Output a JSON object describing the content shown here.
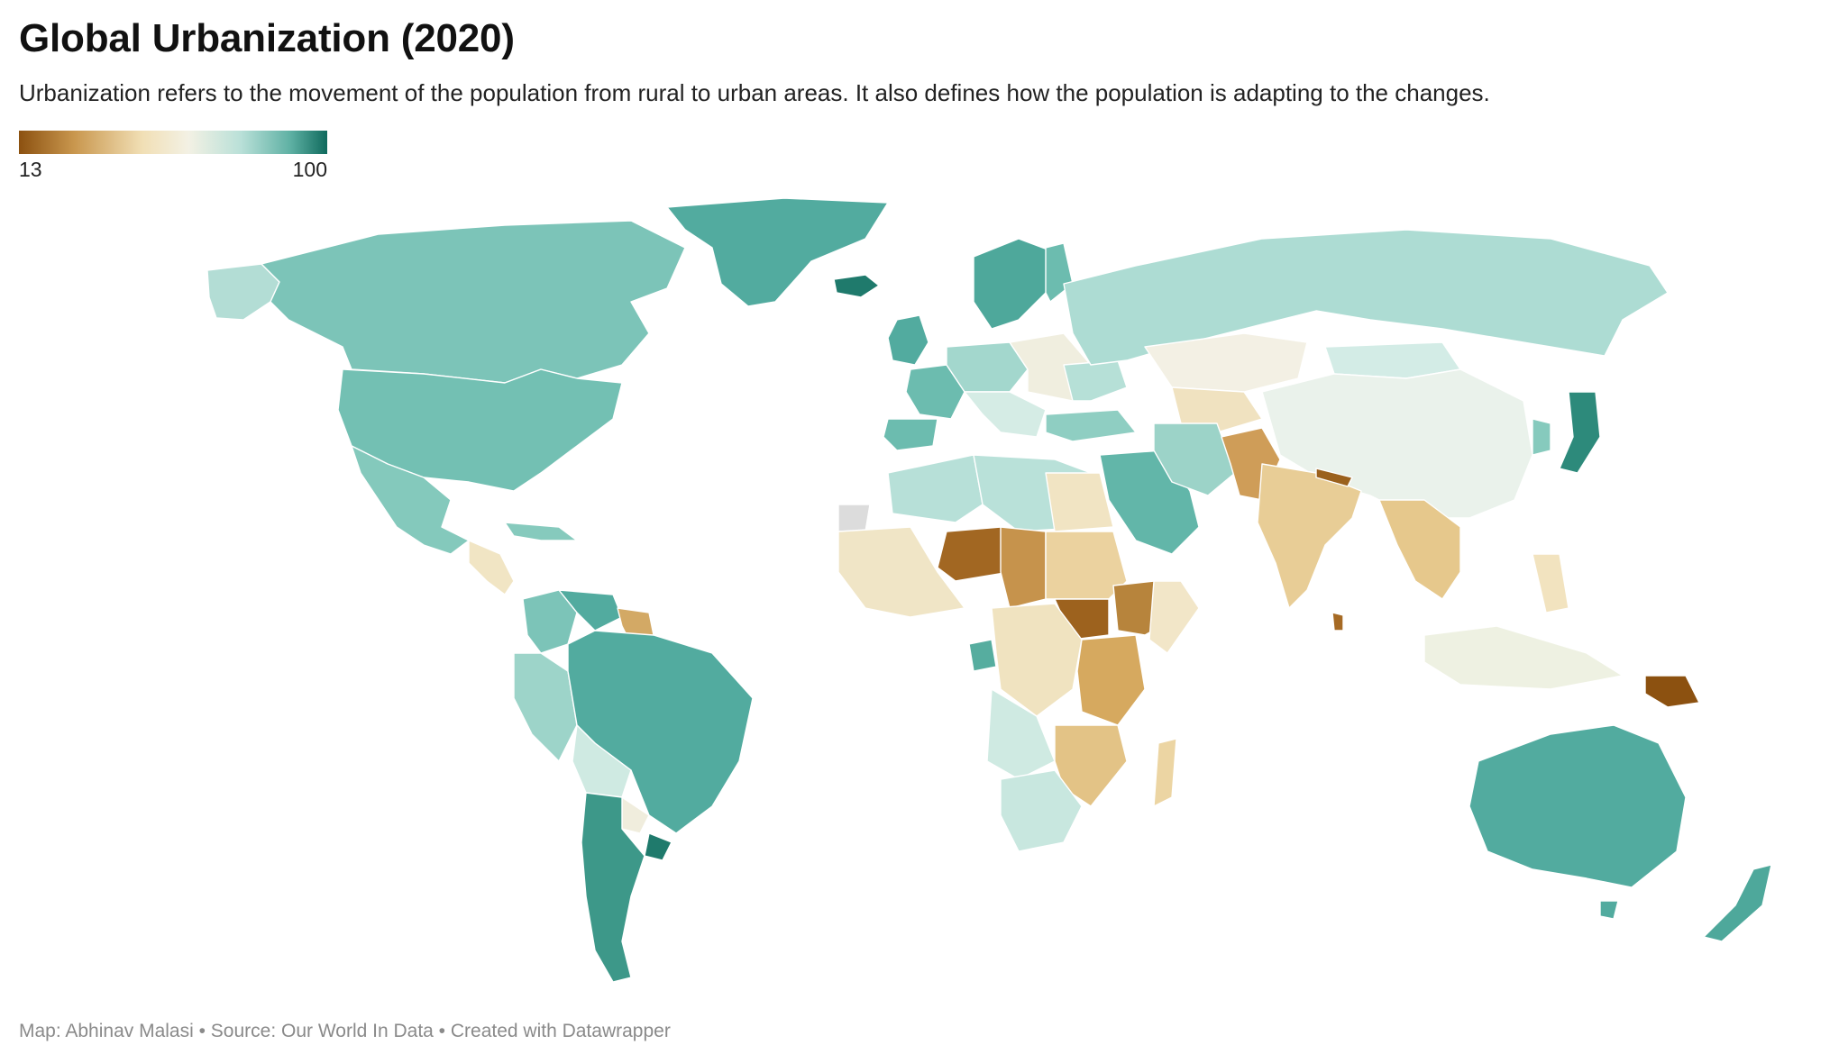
{
  "header": {
    "title": "Global Urbanization (2020)",
    "subtitle": "Urbanization refers to the movement of the population from rural to urban areas. It also defines how the population is adapting to the changes."
  },
  "legend": {
    "min_label": "13",
    "max_label": "100",
    "min_value": 13,
    "max_value": 100,
    "color_stops": [
      "#8c5110",
      "#c9974e",
      "#f1dfb5",
      "#f3f1e4",
      "#b9e0d8",
      "#5fb1a4",
      "#0f6a5d"
    ]
  },
  "footer": {
    "credit": "Map: Abhinav Malasi • Source: Our World In Data • Created with Datawrapper"
  },
  "colors": {
    "no_data": "#dcdcdc"
  }
}
